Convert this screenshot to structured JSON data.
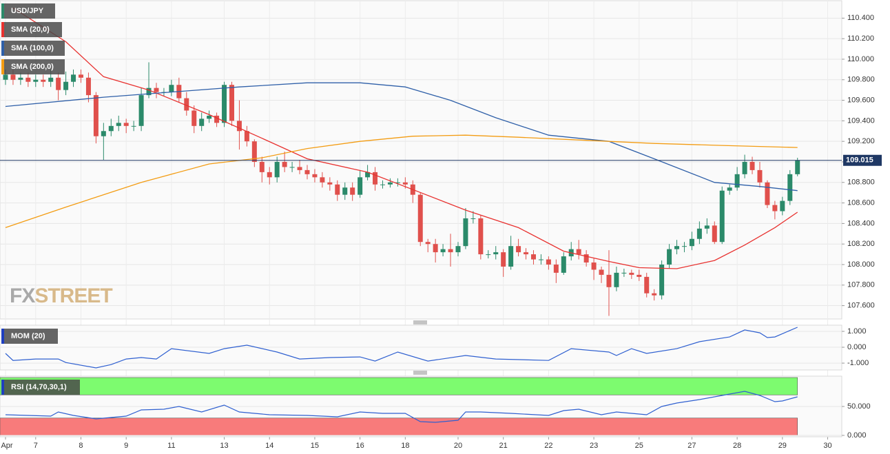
{
  "logo": {
    "fx": "FX",
    "street": "STREET"
  },
  "chart_data": [
    {
      "type": "candlestick",
      "name": "USD/JPY",
      "up_color": "#2b8a6a",
      "down_color": "#e0504c",
      "grid": true,
      "categories": [
        null,
        null,
        null,
        null,
        null,
        null,
        null,
        null,
        null,
        null,
        null,
        null,
        null,
        null,
        null,
        null,
        null,
        null,
        null,
        null,
        null,
        null,
        null,
        null,
        null,
        null,
        null,
        null,
        null,
        null,
        null,
        null,
        null,
        null,
        null,
        null,
        null,
        null,
        null,
        null,
        null,
        null,
        null,
        null,
        null,
        null,
        null,
        null,
        null,
        null,
        null,
        null,
        null,
        null,
        null,
        null,
        null,
        null,
        null,
        null,
        null,
        null,
        null,
        null,
        null,
        null,
        null,
        null,
        null,
        null,
        null,
        null,
        null,
        null,
        null,
        null,
        null,
        null,
        null,
        null,
        null,
        null,
        null,
        null,
        null,
        null,
        null,
        null,
        null,
        null,
        null,
        null,
        null,
        null,
        null,
        null,
        null,
        null,
        null,
        null,
        null,
        null,
        null,
        null,
        null,
        null
      ],
      "open": [
        109.8,
        109.85,
        109.8,
        109.82,
        109.78,
        109.8,
        109.78,
        109.82,
        109.7,
        109.78,
        109.85,
        109.82,
        109.65,
        109.25,
        109.3,
        109.35,
        109.38,
        109.35,
        109.35,
        109.65,
        109.72,
        109.68,
        109.68,
        109.75,
        109.62,
        109.5,
        109.35,
        109.42,
        109.45,
        109.38,
        109.75,
        109.4,
        109.3,
        109.2,
        109.0,
        108.9,
        108.85,
        109.0,
        108.95,
        108.95,
        108.92,
        108.88,
        108.85,
        108.8,
        108.78,
        108.68,
        108.75,
        108.68,
        108.85,
        108.9,
        108.78,
        108.78,
        108.8,
        108.8,
        108.78,
        108.68,
        108.22,
        108.2,
        108.12,
        108.15,
        108.12,
        108.18,
        108.45,
        108.45,
        108.1,
        108.1,
        108.12,
        107.98,
        108.18,
        108.12,
        108.1,
        108.05,
        108.05,
        108.0,
        107.92,
        108.08,
        108.15,
        108.1,
        108.02,
        107.95,
        107.9,
        107.78,
        107.92,
        107.92,
        107.9,
        107.88,
        107.72,
        107.7,
        108.0,
        108.15,
        108.18,
        108.18,
        108.25,
        108.35,
        108.38,
        108.22,
        108.72,
        108.75,
        108.88,
        109.0,
        108.92,
        108.8,
        108.58,
        108.52,
        108.62,
        108.88
      ],
      "high": [
        109.9,
        109.9,
        109.87,
        109.87,
        109.85,
        109.85,
        109.9,
        109.87,
        109.88,
        109.9,
        109.9,
        109.87,
        109.68,
        109.38,
        109.42,
        109.45,
        109.42,
        109.4,
        109.72,
        109.97,
        109.77,
        109.72,
        109.8,
        109.82,
        109.68,
        109.55,
        109.48,
        109.5,
        109.48,
        109.78,
        109.78,
        109.6,
        109.35,
        109.22,
        109.05,
        108.95,
        109.05,
        109.1,
        109.0,
        109.02,
        108.97,
        108.93,
        108.9,
        108.85,
        108.82,
        108.8,
        108.8,
        108.92,
        108.97,
        108.95,
        108.82,
        108.84,
        108.84,
        108.85,
        108.82,
        108.7,
        108.25,
        108.25,
        108.2,
        108.3,
        108.22,
        108.55,
        108.52,
        108.48,
        108.14,
        108.18,
        108.15,
        108.28,
        108.25,
        108.16,
        108.14,
        108.1,
        108.08,
        108.05,
        108.12,
        108.22,
        108.24,
        108.14,
        108.06,
        107.98,
        108.14,
        107.98,
        107.96,
        107.95,
        107.95,
        107.92,
        107.76,
        108.04,
        108.2,
        108.24,
        108.22,
        108.32,
        108.42,
        108.45,
        108.42,
        108.76,
        108.78,
        108.95,
        109.07,
        109.05,
        109.0,
        108.82,
        108.62,
        108.66,
        108.92,
        109.04
      ],
      "low": [
        109.75,
        109.75,
        109.75,
        109.73,
        109.73,
        109.73,
        109.73,
        109.6,
        109.65,
        109.73,
        109.77,
        109.58,
        109.18,
        109.02,
        109.25,
        109.3,
        109.28,
        109.3,
        109.3,
        109.62,
        109.62,
        109.64,
        109.64,
        109.58,
        109.45,
        109.28,
        109.3,
        109.38,
        109.34,
        109.34,
        109.35,
        109.12,
        109.15,
        108.95,
        108.8,
        108.78,
        108.8,
        108.9,
        108.9,
        108.88,
        108.83,
        108.8,
        108.75,
        108.72,
        108.62,
        108.63,
        108.62,
        108.65,
        108.82,
        108.72,
        108.74,
        108.75,
        108.76,
        108.74,
        108.6,
        108.18,
        108.12,
        108.02,
        108.08,
        107.98,
        108.08,
        108.15,
        108.4,
        108.05,
        108.06,
        108.05,
        107.88,
        107.95,
        108.08,
        108.05,
        108.0,
        108.0,
        107.95,
        107.82,
        107.9,
        108.04,
        108.05,
        107.98,
        107.85,
        107.82,
        107.5,
        107.74,
        107.88,
        107.86,
        107.84,
        107.68,
        107.65,
        107.66,
        107.96,
        108.1,
        108.12,
        108.14,
        108.2,
        108.3,
        108.2,
        108.2,
        108.68,
        108.72,
        108.84,
        108.88,
        108.75,
        108.55,
        108.44,
        108.48,
        108.58,
        108.86
      ],
      "close": [
        109.85,
        109.8,
        109.82,
        109.78,
        109.8,
        109.78,
        109.82,
        109.7,
        109.78,
        109.85,
        109.82,
        109.65,
        109.25,
        109.3,
        109.35,
        109.38,
        109.35,
        109.35,
        109.65,
        109.72,
        109.68,
        109.68,
        109.75,
        109.62,
        109.5,
        109.35,
        109.42,
        109.45,
        109.38,
        109.75,
        109.4,
        109.3,
        109.2,
        109.0,
        108.9,
        108.85,
        109.0,
        108.95,
        108.95,
        108.92,
        108.88,
        108.85,
        108.8,
        108.78,
        108.68,
        108.75,
        108.68,
        108.85,
        108.9,
        108.78,
        108.78,
        108.8,
        108.8,
        108.78,
        108.68,
        108.22,
        108.2,
        108.12,
        108.15,
        108.12,
        108.18,
        108.45,
        108.45,
        108.1,
        108.1,
        108.12,
        107.98,
        108.18,
        108.12,
        108.1,
        108.05,
        108.05,
        108.0,
        107.92,
        108.08,
        108.15,
        108.1,
        108.02,
        107.95,
        107.9,
        107.78,
        107.92,
        107.92,
        107.9,
        107.88,
        107.72,
        107.7,
        108.0,
        108.15,
        108.18,
        108.18,
        108.25,
        108.35,
        108.38,
        108.22,
        108.72,
        108.75,
        108.88,
        109.0,
        108.92,
        108.8,
        108.58,
        108.52,
        108.62,
        108.88,
        109.015
      ],
      "last_price_color": "#1f3864",
      "overlays": [
        {
          "name": "SMA (20,0)",
          "color": "#e8312f",
          "x": [
            1,
            8,
            13,
            19,
            27,
            34,
            40,
            48,
            54,
            61,
            68,
            74,
            80,
            84,
            89,
            94,
            98,
            102,
            105
          ],
          "values": [
            110.5,
            110.17,
            109.83,
            109.7,
            109.46,
            109.23,
            109.03,
            108.9,
            108.73,
            108.53,
            108.36,
            108.13,
            108.03,
            107.97,
            107.96,
            108.04,
            108.19,
            108.36,
            108.51
          ]
        },
        {
          "name": "SMA (100,0)",
          "color": "#2e5fa8",
          "x": [
            0,
            13,
            22,
            31,
            40,
            47,
            53,
            59,
            65,
            72,
            80,
            86,
            94,
            100,
            105
          ],
          "values": [
            109.54,
            109.63,
            109.68,
            109.73,
            109.77,
            109.77,
            109.73,
            109.6,
            109.43,
            109.26,
            109.2,
            109.03,
            108.8,
            108.76,
            108.72
          ]
        },
        {
          "name": "SMA (200,0)",
          "color": "#f39c12",
          "x": [
            0,
            8,
            18,
            27,
            34,
            40,
            47,
            54,
            61,
            68,
            77,
            86,
            95,
            105
          ],
          "values": [
            108.36,
            108.56,
            108.8,
            108.98,
            109.04,
            109.13,
            109.2,
            109.25,
            109.26,
            109.24,
            109.21,
            109.18,
            109.16,
            109.14
          ]
        }
      ],
      "xlim": [
        -0.73,
        110.87
      ],
      "xticks": [
        {
          "value": 0,
          "label": "Apr"
        },
        {
          "value": 4,
          "label": "7"
        },
        {
          "value": 10,
          "label": "8"
        },
        {
          "value": 16,
          "label": "9"
        },
        {
          "value": 22,
          "label": "11"
        },
        {
          "value": 29,
          "label": "13"
        },
        {
          "value": 35,
          "label": "14"
        },
        {
          "value": 41,
          "label": "15"
        },
        {
          "value": 47,
          "label": "16"
        },
        {
          "value": 53,
          "label": "18"
        },
        {
          "value": 60,
          "label": "20"
        },
        {
          "value": 66,
          "label": "21"
        },
        {
          "value": 72,
          "label": "22"
        },
        {
          "value": 78,
          "label": "23"
        },
        {
          "value": 84,
          "label": "25"
        },
        {
          "value": 91,
          "label": "27"
        },
        {
          "value": 97,
          "label": "28"
        },
        {
          "value": 103,
          "label": "29"
        },
        {
          "value": 109,
          "label": "30"
        }
      ],
      "ylim": [
        107.47,
        110.57
      ],
      "yticks": [
        {
          "value": 107.6,
          "label": "107.600"
        },
        {
          "value": 107.8,
          "label": "107.800"
        },
        {
          "value": 108,
          "label": "108.000"
        },
        {
          "value": 108.2,
          "label": "108.200"
        },
        {
          "value": 108.4,
          "label": "108.400"
        },
        {
          "value": 108.6,
          "label": "108.600"
        },
        {
          "value": 108.8,
          "label": "108.800"
        },
        {
          "value": 109,
          "label": "109.000"
        },
        {
          "value": 109.2,
          "label": "109.200"
        },
        {
          "value": 109.4,
          "label": "109.400"
        },
        {
          "value": 109.6,
          "label": "109.600"
        },
        {
          "value": 109.8,
          "label": "109.800"
        },
        {
          "value": 110,
          "label": "110.000"
        },
        {
          "value": 110.2,
          "label": "110.200"
        },
        {
          "value": 110.4,
          "label": "110.400"
        }
      ]
    },
    {
      "type": "line",
      "name": "MOM (20)",
      "color": "#2e5fd0",
      "grid": true,
      "x": [
        0,
        1,
        4,
        7,
        8,
        12,
        14,
        16,
        18,
        20,
        22,
        27,
        29,
        32,
        36,
        39,
        43,
        47,
        49,
        52,
        56,
        61,
        65,
        72,
        75,
        80,
        81,
        83,
        85,
        89,
        92,
        96,
        98,
        100,
        101,
        102,
        105
      ],
      "values": [
        -0.39,
        -0.83,
        -0.74,
        -0.74,
        -0.96,
        -1.3,
        -1.09,
        -0.74,
        -0.65,
        -0.74,
        -0.09,
        -0.39,
        -0.09,
        0.13,
        -0.3,
        -0.74,
        -0.65,
        -0.61,
        -0.87,
        -0.3,
        -0.87,
        -0.52,
        -0.74,
        -0.83,
        -0.09,
        -0.3,
        -0.52,
        -0.09,
        -0.39,
        -0.09,
        0.35,
        0.65,
        1.09,
        0.91,
        0.61,
        0.65,
        1.26
      ],
      "ylim": [
        -1.43,
        1.39
      ],
      "yticks": [
        {
          "value": -1,
          "label": "-1.000"
        },
        {
          "value": 0,
          "label": "0.000"
        },
        {
          "value": 1,
          "label": "1.000"
        }
      ]
    },
    {
      "type": "line",
      "name": "RSI (14,70,30,1)",
      "color": "#2e5fd0",
      "grid": true,
      "bands": [
        {
          "from": 70,
          "to": 100,
          "color": "#7dfb6f"
        },
        {
          "from": 0,
          "to": 30,
          "color": "#f87b7b"
        }
      ],
      "x": [
        0,
        3,
        6,
        7,
        9,
        12,
        16,
        18,
        21,
        23,
        26,
        29,
        31,
        35,
        40,
        44,
        47,
        50,
        53,
        55,
        57,
        60,
        61,
        63,
        67,
        72,
        74,
        76,
        79,
        81,
        85,
        87,
        89,
        92,
        95,
        98,
        100,
        102,
        103,
        105
      ],
      "values": [
        35.7,
        34.5,
        33.3,
        40.5,
        34.5,
        28.6,
        33.3,
        44.0,
        45.2,
        50.0,
        40.5,
        52.4,
        40.5,
        35.7,
        34.5,
        32.1,
        40.5,
        38.1,
        38.1,
        23.8,
        22.6,
        26.2,
        40.5,
        40.5,
        38.1,
        34.5,
        42.9,
        45.2,
        35.7,
        40.5,
        35.7,
        50.0,
        56.0,
        61.9,
        69.0,
        76.2,
        69.0,
        58.3,
        59.5,
        66.7
      ],
      "ylim": [
        -2.4,
        102.4
      ],
      "yticks": [
        {
          "value": 0,
          "label": "0.000"
        },
        {
          "value": 50,
          "label": "50.000"
        }
      ]
    }
  ]
}
